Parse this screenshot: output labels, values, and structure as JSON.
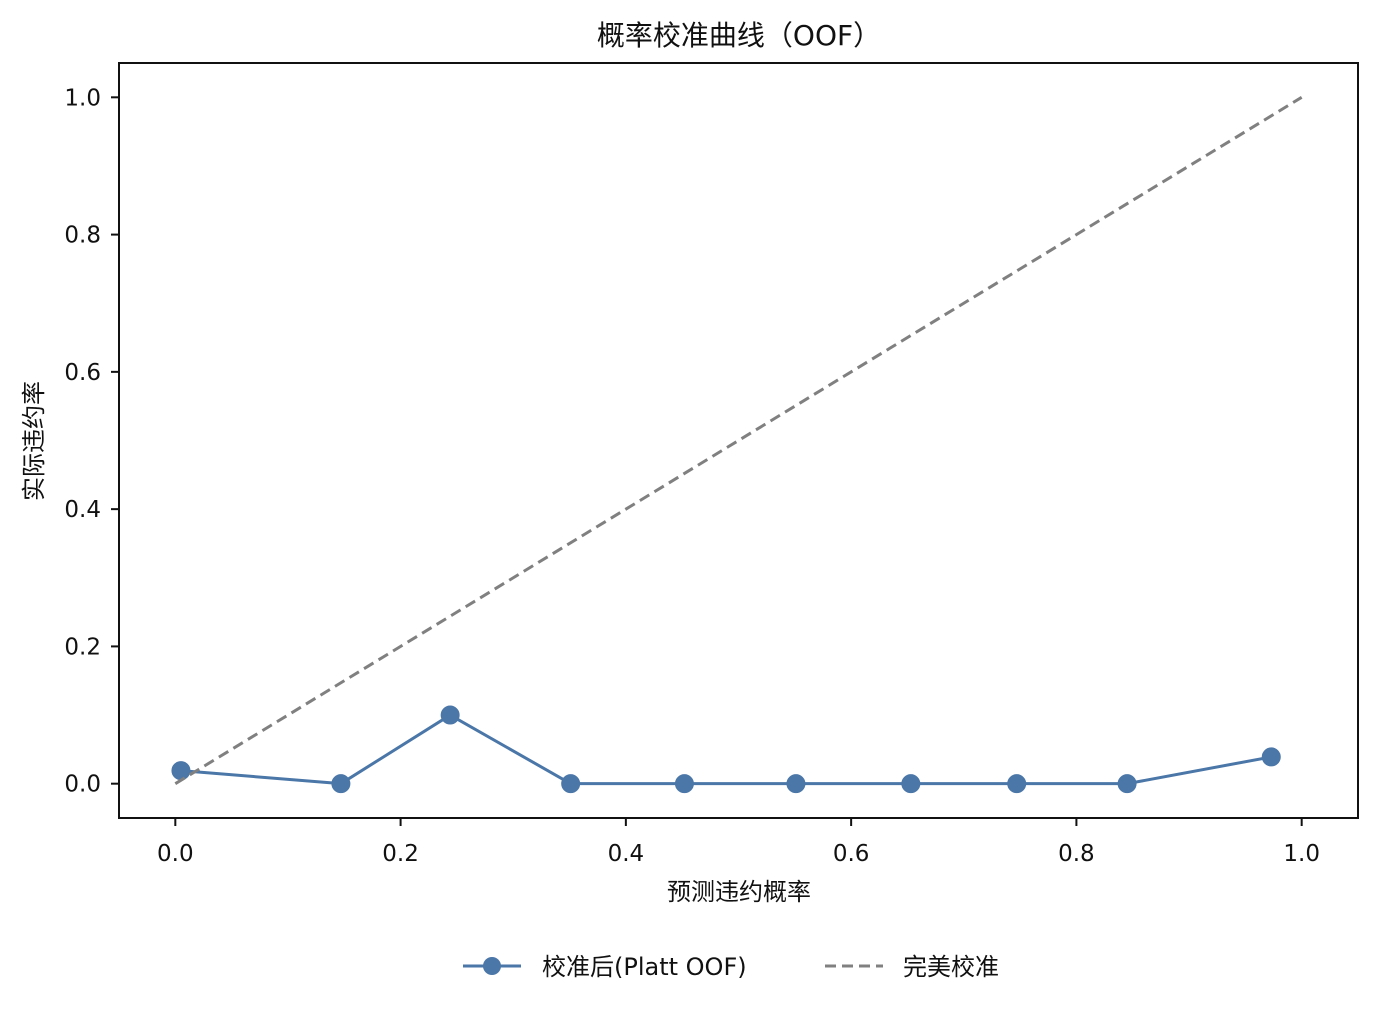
{
  "chart_data": {
    "type": "line",
    "title": "概率校准曲线（OOF）",
    "xlabel": "预测违约概率",
    "ylabel": "实际违约率",
    "xlim": [
      -0.05,
      1.05
    ],
    "ylim": [
      -0.05,
      1.05
    ],
    "xticks": [
      0.0,
      0.2,
      0.4,
      0.6,
      0.8,
      1.0
    ],
    "yticks": [
      0.0,
      0.2,
      0.4,
      0.6,
      0.8,
      1.0
    ],
    "x_tick_labels": [
      "0.0",
      "0.2",
      "0.4",
      "0.6",
      "0.8",
      "1.0"
    ],
    "y_tick_labels": [
      "0.0",
      "0.2",
      "0.4",
      "0.6",
      "0.8",
      "1.0"
    ],
    "grid": false,
    "legend_position": "bottom-center",
    "series": [
      {
        "name": "校准后(Platt OOF)",
        "style": "solid",
        "marker": "circle",
        "color": "#4a76a8",
        "x": [
          0.005,
          0.147,
          0.244,
          0.351,
          0.452,
          0.551,
          0.653,
          0.747,
          0.845,
          0.973
        ],
        "y": [
          0.019,
          0.0,
          0.1,
          0.0,
          0.0,
          0.0,
          0.0,
          0.0,
          0.0,
          0.039
        ]
      },
      {
        "name": "完美校准",
        "style": "dashed",
        "marker": "none",
        "color": "#808080",
        "x": [
          0.0,
          1.0
        ],
        "y": [
          0.0,
          1.0
        ]
      }
    ]
  }
}
